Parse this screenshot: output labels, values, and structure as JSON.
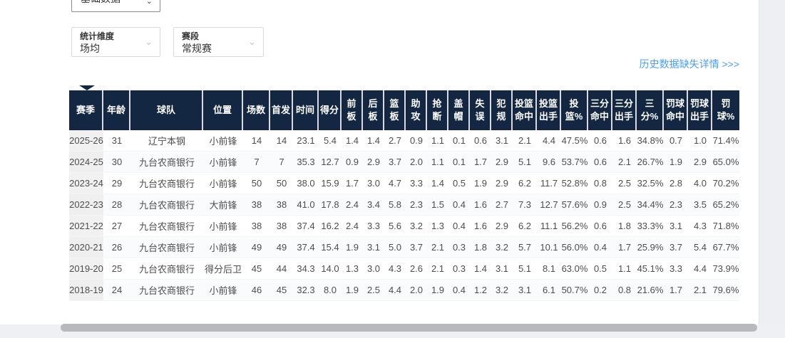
{
  "filters": {
    "category": {
      "value": "基础数据"
    },
    "dimension": {
      "label": "统计维度",
      "value": "场均"
    },
    "stage": {
      "label": "赛段",
      "value": "常规赛"
    }
  },
  "links": {
    "history_missing": "历史数据缺失详情 >>>"
  },
  "icons": {
    "chevron": "⌄"
  },
  "colors": {
    "header_bg": "#132742",
    "link_blue": "#4a9eff",
    "season_cell_bg": "#f1f1f1",
    "scrollbar_thumb": "#b7b9bd"
  },
  "table": {
    "columns": [
      "赛季",
      "年龄",
      "球队",
      "位置",
      "场数",
      "首发",
      "时间",
      "得分",
      "前板",
      "后板",
      "篮板",
      "助攻",
      "抢断",
      "盖帽",
      "失误",
      "犯规",
      "投篮命中",
      "投篮出手",
      "投篮%",
      "三分命中",
      "三分出手",
      "三分%",
      "罚球命中",
      "罚球出手",
      "罚球%"
    ],
    "rows": [
      [
        "2025-26",
        "31",
        "辽宁本钢",
        "小前锋",
        "14",
        "14",
        "23.1",
        "5.4",
        "1.4",
        "1.4",
        "2.7",
        "0.9",
        "1.1",
        "0.1",
        "0.6",
        "3.1",
        "2.1",
        "4.4",
        "47.5%",
        "0.6",
        "1.6",
        "34.8%",
        "0.7",
        "1.0",
        "71.4%"
      ],
      [
        "2024-25",
        "30",
        "九台农商银行",
        "小前锋",
        "7",
        "7",
        "35.3",
        "12.7",
        "0.9",
        "2.9",
        "3.7",
        "2.0",
        "1.1",
        "0.1",
        "1.7",
        "2.9",
        "5.1",
        "9.6",
        "53.7%",
        "0.6",
        "2.1",
        "26.7%",
        "1.9",
        "2.9",
        "65.0%"
      ],
      [
        "2023-24",
        "29",
        "九台农商银行",
        "小前锋",
        "50",
        "50",
        "38.0",
        "15.9",
        "1.7",
        "3.0",
        "4.7",
        "3.3",
        "1.4",
        "0.5",
        "1.9",
        "2.9",
        "6.2",
        "11.7",
        "52.8%",
        "0.8",
        "2.5",
        "32.5%",
        "2.8",
        "4.0",
        "70.2%"
      ],
      [
        "2022-23",
        "28",
        "九台农商银行",
        "大前锋",
        "38",
        "38",
        "41.0",
        "17.8",
        "2.4",
        "3.4",
        "5.8",
        "2.3",
        "1.5",
        "0.4",
        "1.6",
        "2.7",
        "7.3",
        "12.7",
        "57.6%",
        "0.9",
        "2.5",
        "34.4%",
        "2.3",
        "3.5",
        "65.2%"
      ],
      [
        "2021-22",
        "27",
        "九台农商银行",
        "小前锋",
        "38",
        "38",
        "37.4",
        "16.2",
        "2.4",
        "3.3",
        "5.6",
        "3.2",
        "1.3",
        "0.4",
        "1.6",
        "2.9",
        "6.2",
        "11.1",
        "56.2%",
        "0.6",
        "1.8",
        "33.3%",
        "3.1",
        "4.3",
        "71.8%"
      ],
      [
        "2020-21",
        "26",
        "九台农商银行",
        "小前锋",
        "49",
        "49",
        "37.4",
        "15.4",
        "1.9",
        "3.1",
        "5.0",
        "3.7",
        "2.1",
        "0.3",
        "1.8",
        "3.2",
        "5.7",
        "10.1",
        "56.0%",
        "0.4",
        "1.7",
        "25.9%",
        "3.7",
        "5.4",
        "67.7%"
      ],
      [
        "2019-20",
        "25",
        "九台农商银行",
        "得分后卫",
        "45",
        "44",
        "34.3",
        "14.0",
        "1.3",
        "3.0",
        "4.3",
        "2.6",
        "2.1",
        "0.3",
        "1.4",
        "3.1",
        "5.1",
        "8.1",
        "63.0%",
        "0.5",
        "1.1",
        "45.1%",
        "3.3",
        "4.4",
        "73.9%"
      ],
      [
        "2018-19",
        "24",
        "九台农商银行",
        "小前锋",
        "46",
        "45",
        "32.3",
        "8.0",
        "1.9",
        "2.5",
        "4.4",
        "2.0",
        "1.9",
        "0.4",
        "1.2",
        "3.2",
        "3.1",
        "6.1",
        "50.7%",
        "0.2",
        "0.8",
        "21.6%",
        "1.7",
        "2.1",
        "79.6%"
      ]
    ]
  }
}
